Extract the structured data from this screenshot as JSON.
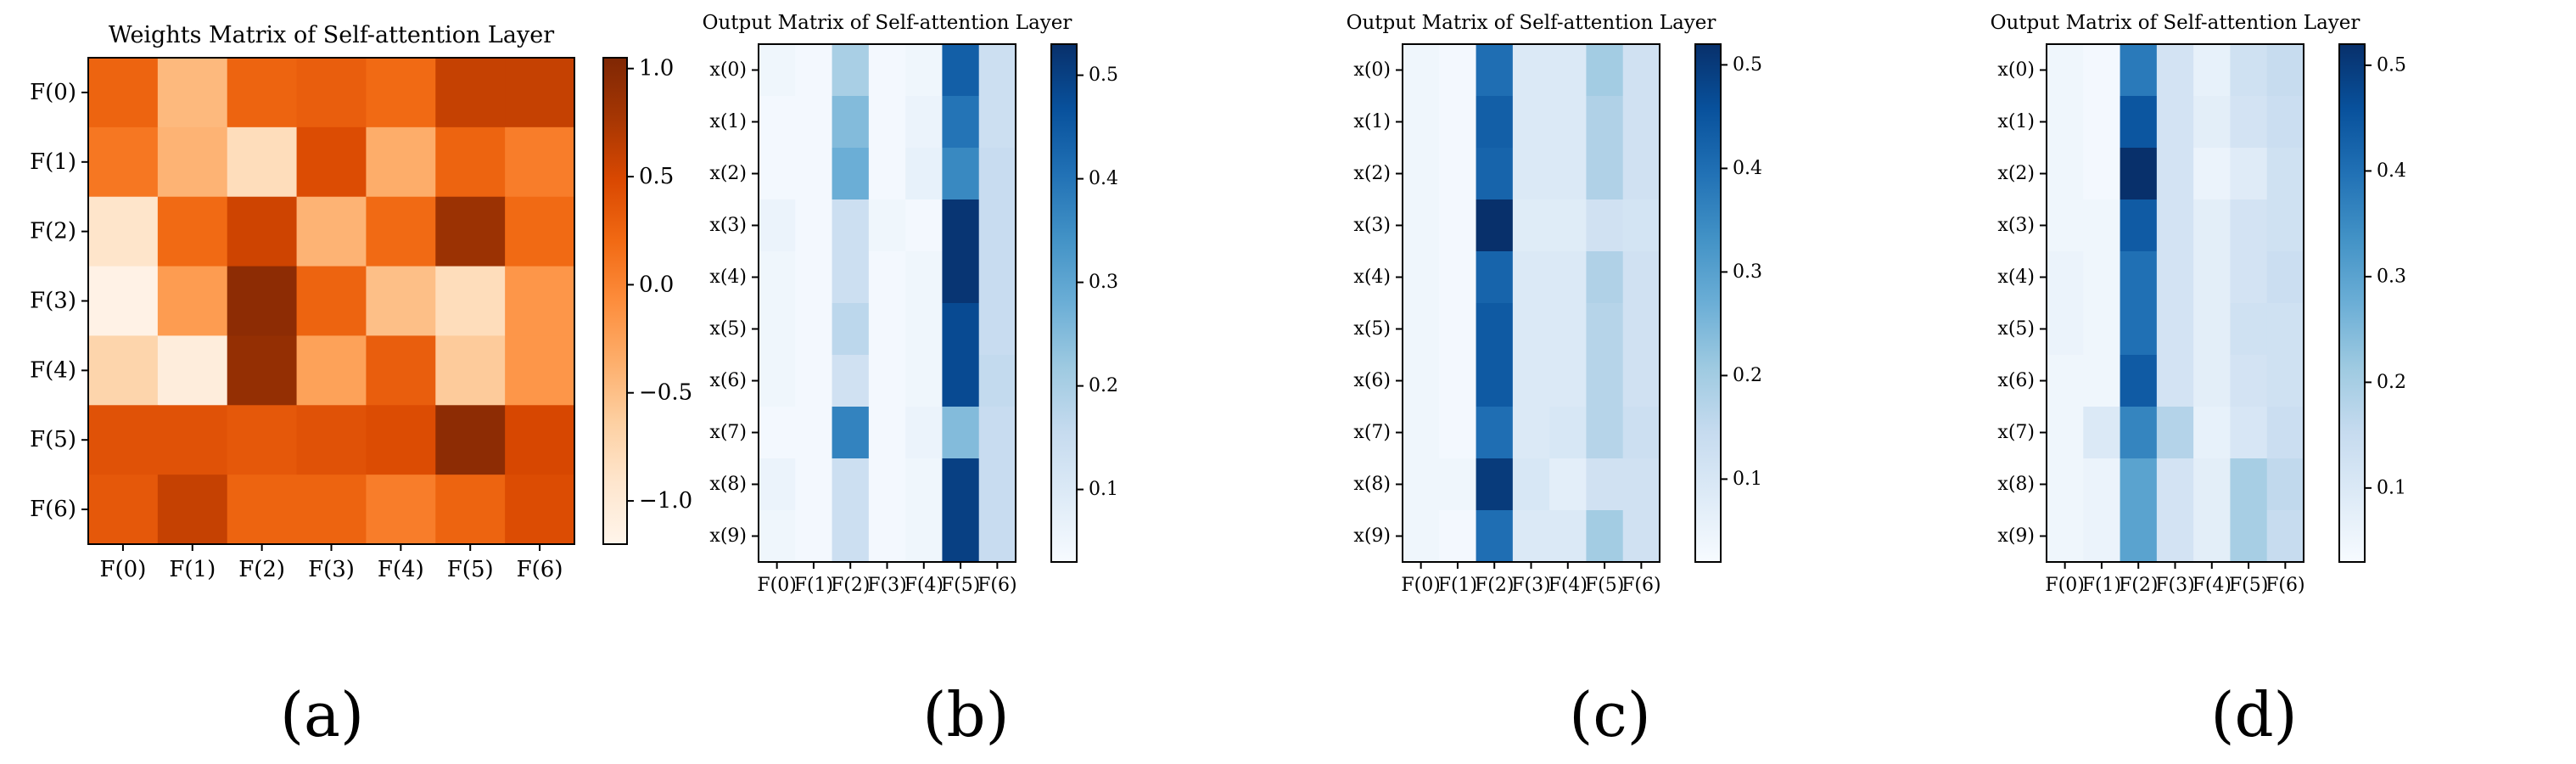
{
  "figure": {
    "panel_labels": [
      "(a)",
      "(b)",
      "(c)",
      "(d)"
    ]
  },
  "colors": {
    "oranges": [
      "#fff5eb",
      "#fee6ce",
      "#fdd0a2",
      "#fdae6b",
      "#fd8d3c",
      "#f16913",
      "#d94801",
      "#a63603",
      "#7f2704"
    ],
    "blues": [
      "#f7fbff",
      "#deebf7",
      "#c6dbef",
      "#9ecae1",
      "#6baed6",
      "#4292c6",
      "#2171b5",
      "#08519c",
      "#08306b"
    ]
  },
  "chart_data": [
    {
      "type": "heatmap",
      "title": "Weights Matrix of Self-attention Layer",
      "cmap": "oranges",
      "x_categories": [
        "F(0)",
        "F(1)",
        "F(2)",
        "F(3)",
        "F(4)",
        "F(5)",
        "F(6)"
      ],
      "y_categories": [
        "F(0)",
        "F(1)",
        "F(2)",
        "F(3)",
        "F(4)",
        "F(5)",
        "F(6)"
      ],
      "vmin": -1.2,
      "vmax": 1.05,
      "colorbar_ticks": [
        1.0,
        0.5,
        0.0,
        -0.5,
        -1.0
      ],
      "colorbar_tick_labels": [
        "1.0",
        "0.5",
        "0.0",
        "−0.5",
        "−1.0"
      ],
      "values": [
        [
          0.25,
          -0.45,
          0.25,
          0.3,
          0.2,
          0.6,
          0.6
        ],
        [
          0.1,
          -0.4,
          -0.8,
          0.45,
          -0.35,
          0.25,
          0.05
        ],
        [
          -0.9,
          0.2,
          0.55,
          -0.4,
          0.2,
          0.85,
          0.2
        ],
        [
          -1.15,
          -0.2,
          0.95,
          0.25,
          -0.5,
          -0.8,
          -0.15
        ],
        [
          -0.7,
          -1.05,
          0.9,
          -0.25,
          0.3,
          -0.6,
          -0.15
        ],
        [
          0.4,
          0.4,
          0.35,
          0.4,
          0.45,
          0.95,
          0.5
        ],
        [
          0.35,
          0.6,
          0.25,
          0.25,
          0.05,
          0.25,
          0.45
        ]
      ]
    },
    {
      "type": "heatmap",
      "title": "Output Matrix of Self-attention Layer",
      "cmap": "blues",
      "x_categories": [
        "F(0)",
        "F(1)",
        "F(2)",
        "F(3)",
        "F(4)",
        "F(5)",
        "F(6)"
      ],
      "y_categories": [
        "x(0)",
        "x(1)",
        "x(2)",
        "x(3)",
        "x(4)",
        "x(5)",
        "x(6)",
        "x(7)",
        "x(8)",
        "x(9)"
      ],
      "vmin": 0.03,
      "vmax": 0.53,
      "colorbar_ticks": [
        0.5,
        0.4,
        0.3,
        0.2,
        0.1
      ],
      "colorbar_tick_labels": [
        "0.5",
        "0.4",
        "0.3",
        "0.2",
        "0.1"
      ],
      "values": [
        [
          0.05,
          0.04,
          0.2,
          0.04,
          0.05,
          0.44,
          0.14
        ],
        [
          0.04,
          0.04,
          0.25,
          0.04,
          0.06,
          0.4,
          0.14
        ],
        [
          0.04,
          0.04,
          0.28,
          0.04,
          0.07,
          0.36,
          0.15
        ],
        [
          0.06,
          0.04,
          0.14,
          0.05,
          0.04,
          0.52,
          0.15
        ],
        [
          0.05,
          0.04,
          0.14,
          0.04,
          0.05,
          0.52,
          0.15
        ],
        [
          0.05,
          0.04,
          0.17,
          0.04,
          0.05,
          0.48,
          0.15
        ],
        [
          0.05,
          0.04,
          0.13,
          0.04,
          0.05,
          0.48,
          0.16
        ],
        [
          0.04,
          0.04,
          0.37,
          0.04,
          0.06,
          0.25,
          0.15
        ],
        [
          0.06,
          0.04,
          0.14,
          0.04,
          0.05,
          0.5,
          0.15
        ],
        [
          0.05,
          0.04,
          0.14,
          0.04,
          0.05,
          0.5,
          0.15
        ]
      ]
    },
    {
      "type": "heatmap",
      "title": "Output Matrix of Self-attention Layer",
      "cmap": "blues",
      "x_categories": [
        "F(0)",
        "F(1)",
        "F(2)",
        "F(3)",
        "F(4)",
        "F(5)",
        "F(6)"
      ],
      "y_categories": [
        "x(0)",
        "x(1)",
        "x(2)",
        "x(3)",
        "x(4)",
        "x(5)",
        "x(6)",
        "x(7)",
        "x(8)",
        "x(9)"
      ],
      "vmin": 0.02,
      "vmax": 0.52,
      "colorbar_ticks": [
        0.5,
        0.4,
        0.3,
        0.2,
        0.1
      ],
      "colorbar_tick_labels": [
        "0.5",
        "0.4",
        "0.3",
        "0.2",
        "0.1"
      ],
      "values": [
        [
          0.04,
          0.03,
          0.4,
          0.09,
          0.09,
          0.2,
          0.12
        ],
        [
          0.04,
          0.03,
          0.43,
          0.09,
          0.09,
          0.18,
          0.12
        ],
        [
          0.04,
          0.03,
          0.42,
          0.09,
          0.09,
          0.18,
          0.12
        ],
        [
          0.04,
          0.03,
          0.52,
          0.08,
          0.08,
          0.12,
          0.11
        ],
        [
          0.04,
          0.03,
          0.42,
          0.09,
          0.09,
          0.18,
          0.12
        ],
        [
          0.04,
          0.03,
          0.44,
          0.09,
          0.09,
          0.17,
          0.12
        ],
        [
          0.04,
          0.03,
          0.44,
          0.09,
          0.09,
          0.17,
          0.12
        ],
        [
          0.04,
          0.03,
          0.4,
          0.09,
          0.1,
          0.17,
          0.13
        ],
        [
          0.04,
          0.04,
          0.5,
          0.1,
          0.07,
          0.12,
          0.12
        ],
        [
          0.04,
          0.03,
          0.4,
          0.09,
          0.09,
          0.2,
          0.12
        ]
      ]
    },
    {
      "type": "heatmap",
      "title": "Output Matrix of Self-attention Layer",
      "cmap": "blues",
      "x_categories": [
        "F(0)",
        "F(1)",
        "F(2)",
        "F(3)",
        "F(4)",
        "F(5)",
        "F(6)"
      ],
      "y_categories": [
        "x(0)",
        "x(1)",
        "x(2)",
        "x(3)",
        "x(4)",
        "x(5)",
        "x(6)",
        "x(7)",
        "x(8)",
        "x(9)"
      ],
      "vmin": 0.03,
      "vmax": 0.52,
      "colorbar_ticks": [
        0.5,
        0.4,
        0.3,
        0.2,
        0.1
      ],
      "colorbar_tick_labels": [
        "0.5",
        "0.4",
        "0.3",
        "0.2",
        "0.1"
      ],
      "values": [
        [
          0.05,
          0.04,
          0.38,
          0.12,
          0.07,
          0.13,
          0.15
        ],
        [
          0.05,
          0.04,
          0.45,
          0.12,
          0.08,
          0.12,
          0.14
        ],
        [
          0.05,
          0.04,
          0.52,
          0.12,
          0.06,
          0.09,
          0.13
        ],
        [
          0.05,
          0.05,
          0.44,
          0.12,
          0.08,
          0.12,
          0.13
        ],
        [
          0.06,
          0.05,
          0.4,
          0.12,
          0.08,
          0.12,
          0.14
        ],
        [
          0.06,
          0.05,
          0.4,
          0.12,
          0.08,
          0.13,
          0.13
        ],
        [
          0.05,
          0.05,
          0.44,
          0.12,
          0.08,
          0.12,
          0.13
        ],
        [
          0.05,
          0.1,
          0.36,
          0.18,
          0.07,
          0.11,
          0.14
        ],
        [
          0.05,
          0.06,
          0.3,
          0.12,
          0.08,
          0.2,
          0.16
        ],
        [
          0.05,
          0.06,
          0.3,
          0.12,
          0.08,
          0.2,
          0.15
        ]
      ]
    }
  ]
}
